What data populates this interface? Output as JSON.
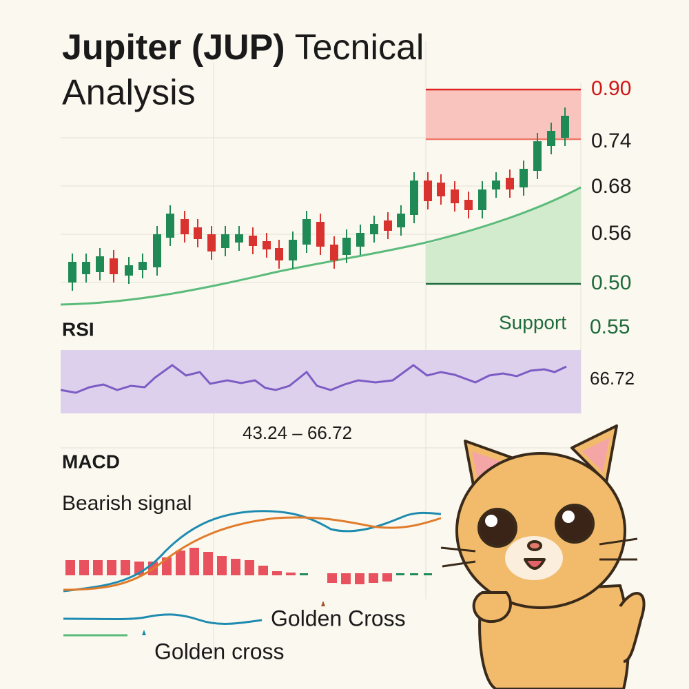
{
  "header": {
    "title_bold": "Jupiter (JUP)",
    "title_rest": "Tecnical",
    "title_line2": "Analysis"
  },
  "price_levels": [
    "0.90",
    "0.74",
    "0.68",
    "0.56",
    "0.50"
  ],
  "support": {
    "label": "Support",
    "value": "0.55"
  },
  "rsi": {
    "label": "RSI",
    "current": "66.72",
    "range": "43.24 – 66.72"
  },
  "macd": {
    "label": "MACD",
    "signal": "Bearish signal",
    "annotations": [
      "Golden Cross",
      "Golden cross"
    ]
  }
}
